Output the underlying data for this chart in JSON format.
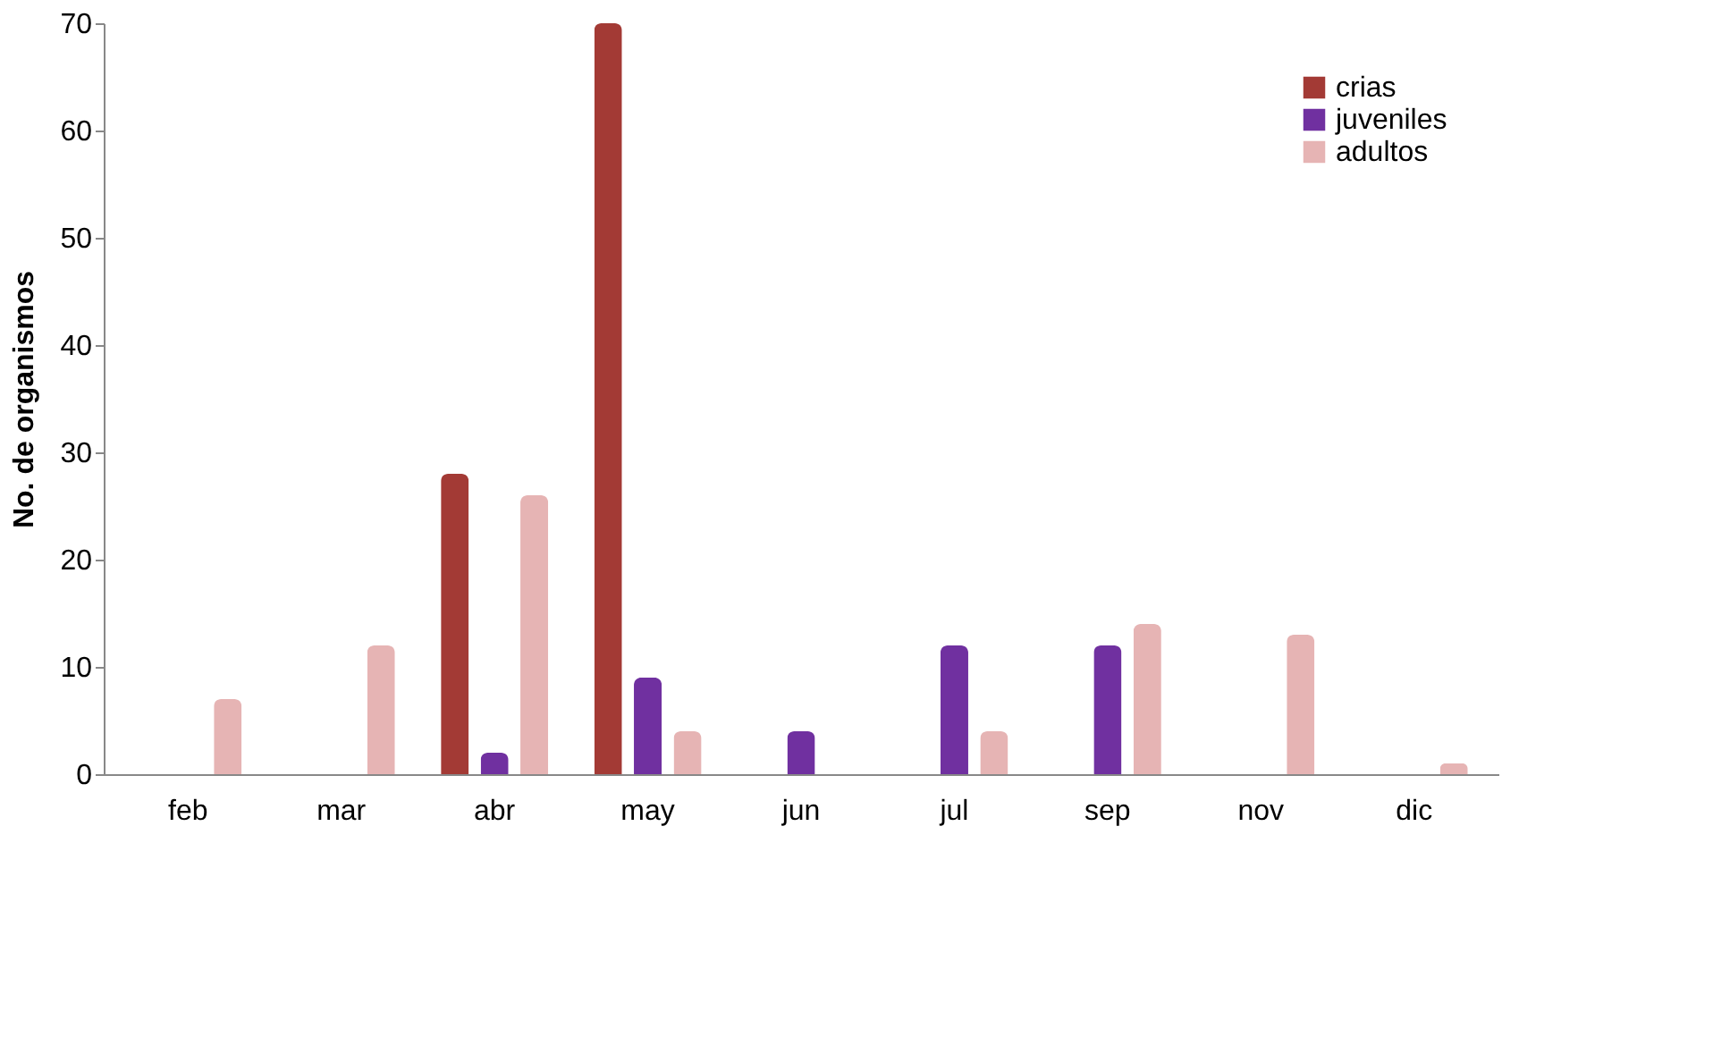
{
  "chart_data": {
    "type": "bar",
    "ylabel": "No. de organismos",
    "categories": [
      "feb",
      "mar",
      "abr",
      "may",
      "jun",
      "jul",
      "sep",
      "nov",
      "dic"
    ],
    "series": [
      {
        "name": "crias",
        "color": "#a33a35",
        "values": [
          0,
          0,
          28,
          70,
          0,
          0,
          0,
          0,
          0
        ]
      },
      {
        "name": "juveniles",
        "color": "#7030a0",
        "values": [
          0,
          0,
          2,
          9,
          4,
          12,
          12,
          0,
          0
        ]
      },
      {
        "name": "adultos",
        "color": "#e6b4b4",
        "values": [
          7,
          12,
          26,
          4,
          0,
          4,
          14,
          13,
          1
        ]
      }
    ],
    "ylim": [
      0,
      70
    ],
    "yticks": [
      0,
      10,
      20,
      30,
      40,
      50,
      60,
      70
    ],
    "grid": false,
    "legend": "top right"
  }
}
